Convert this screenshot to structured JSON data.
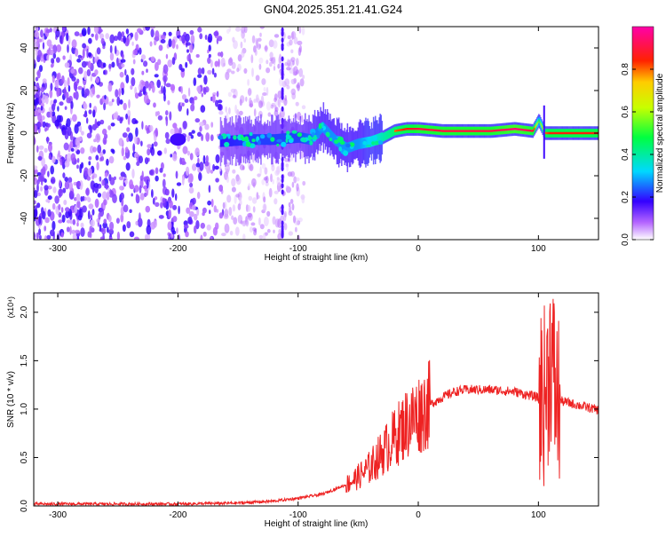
{
  "title": "GN04.2025.351.21.41.G24",
  "chart_data": [
    {
      "type": "heatmap",
      "xlabel": "Height of straight line (km)",
      "ylabel": "Frequency (Hz)",
      "xlim": [
        -320,
        150
      ],
      "ylim": [
        -50,
        50
      ],
      "x_ticks": [
        -300,
        -200,
        -100,
        0,
        100
      ],
      "y_ticks": [
        -40,
        -20,
        0,
        20,
        40
      ],
      "colorbar": {
        "label": "Normalized spectral amplitude",
        "range": [
          0.0,
          1.0
        ],
        "ticks": [
          0.0,
          0.2,
          0.4,
          0.6,
          0.8
        ],
        "tick_labels": [
          "0.0",
          "0.2",
          "0.4",
          "0.6",
          "0.8"
        ],
        "colormap": "white-purple-blue-cyan-green-yellow-red-magenta"
      },
      "ridge": {
        "x": [
          -165,
          -140,
          -120,
          -100,
          -90,
          -80,
          -70,
          -60,
          -50,
          -40,
          -30,
          -20,
          -10,
          0,
          20,
          40,
          60,
          80,
          95,
          100,
          105,
          110,
          130,
          150
        ],
        "y": [
          -4,
          -3,
          -3,
          -2,
          -3,
          3,
          -3,
          -7,
          -5,
          -4,
          -2,
          1,
          2,
          2,
          1,
          1,
          1,
          2,
          1,
          6,
          0,
          0,
          0,
          0
        ],
        "amplitude": [
          0.35,
          0.4,
          0.4,
          0.4,
          0.45,
          0.5,
          0.5,
          0.5,
          0.5,
          0.6,
          0.7,
          0.8,
          0.85,
          0.9,
          0.9,
          0.9,
          0.9,
          0.95,
          0.9,
          0.5,
          0.8,
          0.85,
          0.85,
          0.85
        ]
      },
      "noise_region_x": [
        -320,
        -110
      ]
    },
    {
      "type": "line",
      "xlabel": "Height of straight line (km)",
      "ylabel": "SNR (10 * v/v)",
      "y_multiplier": "(x10⁴)",
      "xlim": [
        -320,
        150
      ],
      "ylim": [
        0,
        2.2
      ],
      "x_ticks": [
        -300,
        -200,
        -100,
        0,
        100
      ],
      "y_ticks": [
        0.0,
        0.5,
        1.0,
        1.5,
        2.0
      ],
      "y_tick_labels": [
        "0.0",
        "0.5",
        "1.0",
        "1.5",
        "2.0"
      ],
      "color": "#ee2222",
      "series": [
        {
          "x": [
            -320,
            -200,
            -150,
            -120,
            -100,
            -80,
            -60,
            -50,
            -40,
            -30,
            -20,
            -10,
            0,
            10,
            20,
            30,
            40,
            60,
            80,
            100,
            105,
            108,
            110,
            112,
            115,
            120,
            130,
            140,
            150
          ],
          "values": [
            0.02,
            0.02,
            0.03,
            0.05,
            0.08,
            0.12,
            0.22,
            0.3,
            0.4,
            0.55,
            0.7,
            0.85,
            0.95,
            1.05,
            1.12,
            1.18,
            1.2,
            1.2,
            1.18,
            1.12,
            1.15,
            1.3,
            1.6,
            1.4,
            1.1,
            1.08,
            1.05,
            1.02,
            0.99
          ]
        }
      ]
    }
  ]
}
